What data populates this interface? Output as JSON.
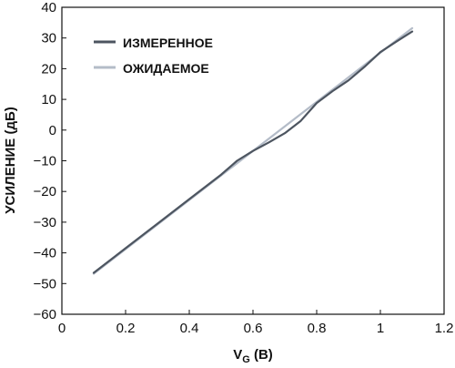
{
  "chart_data": {
    "type": "line",
    "xlabel_main": "V",
    "xlabel_sub": "G",
    "xlabel_unit": " (В)",
    "ylabel": "УСИЛЕНИЕ (дБ)",
    "xlim": [
      0,
      1.2
    ],
    "ylim": [
      -60,
      40
    ],
    "x_ticks": [
      0,
      0.2,
      0.4,
      0.6,
      0.8,
      1,
      1.2
    ],
    "x_tick_labels": [
      "0",
      "0.2",
      "0.4",
      "0.6",
      "0.8",
      "1",
      "1.2"
    ],
    "y_ticks": [
      40,
      30,
      20,
      10,
      0,
      -10,
      -20,
      -30,
      -40,
      -50,
      -60
    ],
    "y_tick_labels": [
      "40",
      "30",
      "20",
      "10",
      "0",
      "−10",
      "−20",
      "−30",
      "−40",
      "−50",
      "−60"
    ],
    "grid": false,
    "legend_position": "top-left",
    "series": [
      {
        "name": "ИЗМЕРЕННОЕ",
        "color": "#4d5560",
        "x": [
          0.1,
          0.2,
          0.3,
          0.4,
          0.5,
          0.55,
          0.6,
          0.65,
          0.7,
          0.75,
          0.8,
          0.85,
          0.9,
          0.95,
          1.0,
          1.05,
          1.1
        ],
        "y": [
          -46.5,
          -38.5,
          -30.5,
          -22.5,
          -14.5,
          -10,
          -6.8,
          -4,
          -1,
          3,
          8.8,
          12.7,
          16.2,
          20.6,
          25.4,
          28.8,
          32.1
        ]
      },
      {
        "name": "ОЖИДАЕМОЕ",
        "color": "#b4bcc8",
        "x": [
          0.1,
          1.1
        ],
        "y": [
          -46.8,
          33.2
        ]
      }
    ]
  }
}
